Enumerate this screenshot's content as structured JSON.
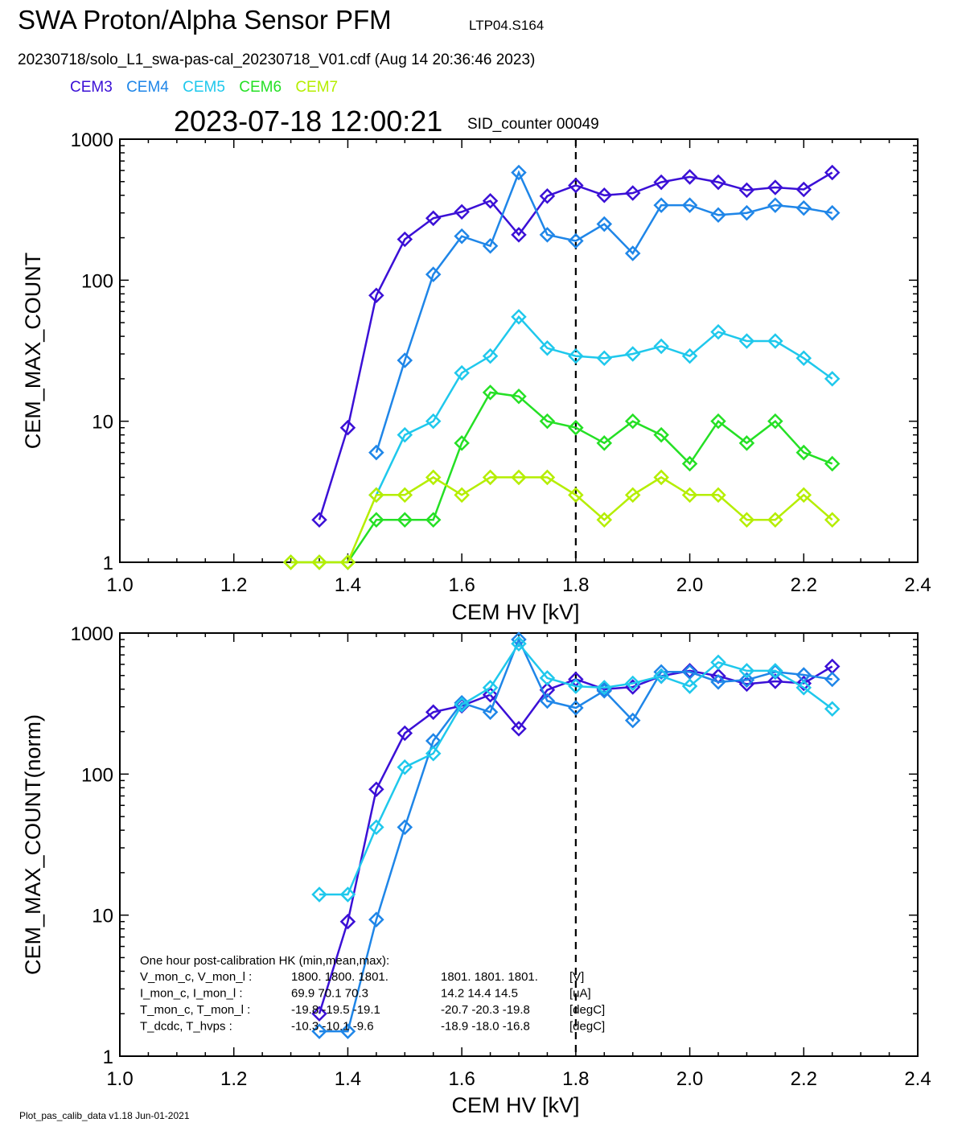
{
  "header": {
    "title": "SWA Proton/Alpha Sensor PFM",
    "title_tag": "LTP04.S164",
    "file_line": "20230718/solo_L1_swa-pas-cal_20230718_V01.cdf  (Aug 14 20:36:46 2023)",
    "legend": [
      {
        "label": "CEM3",
        "color": "#3b10d6"
      },
      {
        "label": "CEM4",
        "color": "#1f86e8"
      },
      {
        "label": "CEM5",
        "color": "#1fc8ec"
      },
      {
        "label": "CEM6",
        "color": "#25e025"
      },
      {
        "label": "CEM7",
        "color": "#b5ee00"
      }
    ],
    "timestamp": "2023-07-18 12:00:21",
    "sid_counter": "SID_counter 00049"
  },
  "footer": "Plot_pas_calib_data v1.18 Jun-01-2021",
  "chart_data": [
    {
      "type": "line",
      "xlabel": "CEM HV [kV]",
      "ylabel": "CEM_MAX_COUNT",
      "xlim": [
        1.0,
        2.4
      ],
      "ylim": [
        1,
        1000
      ],
      "yscale": "log",
      "x_ticks": [
        "1.0",
        "1.2",
        "1.4",
        "1.6",
        "1.8",
        "2.0",
        "2.2",
        "2.4"
      ],
      "y_ticks": [
        "1",
        "10",
        "100",
        "1000"
      ],
      "marker": "diamond",
      "vline": 1.8,
      "series": [
        {
          "name": "CEM3",
          "color": "#3b10d6",
          "x": [
            1.35,
            1.4,
            1.45,
            1.5,
            1.55,
            1.6,
            1.65,
            1.7,
            1.75,
            1.8,
            1.85,
            1.9,
            1.95,
            2.0,
            2.05,
            2.1,
            2.15,
            2.2,
            2.25
          ],
          "y": [
            2,
            9,
            78,
            195,
            275,
            305,
            365,
            210,
            395,
            470,
            400,
            415,
            495,
            540,
            495,
            435,
            455,
            440,
            580
          ]
        },
        {
          "name": "CEM4",
          "color": "#1f86e8",
          "x": [
            1.45,
            1.5,
            1.55,
            1.6,
            1.65,
            1.7,
            1.75,
            1.8,
            1.85,
            1.9,
            1.95,
            2.0,
            2.05,
            2.1,
            2.15,
            2.2,
            2.25
          ],
          "y": [
            6,
            27,
            110,
            205,
            175,
            580,
            210,
            190,
            250,
            155,
            340,
            340,
            290,
            300,
            340,
            325,
            300
          ]
        },
        {
          "name": "CEM5",
          "color": "#1fc8ec",
          "x": [
            1.45,
            1.5,
            1.55,
            1.6,
            1.65,
            1.7,
            1.75,
            1.8,
            1.85,
            1.9,
            1.95,
            2.0,
            2.05,
            2.1,
            2.15,
            2.2,
            2.25
          ],
          "y": [
            3,
            8,
            10,
            22,
            29,
            55,
            33,
            29,
            28,
            30,
            34,
            29,
            43,
            37,
            37,
            28,
            20
          ]
        },
        {
          "name": "CEM6",
          "color": "#25e025",
          "x": [
            1.3,
            1.35,
            1.4,
            1.45,
            1.5,
            1.55,
            1.6,
            1.65,
            1.7,
            1.75,
            1.8,
            1.85,
            1.9,
            1.95,
            2.0,
            2.05,
            2.1,
            2.15,
            2.2,
            2.25
          ],
          "y": [
            1,
            1,
            1,
            2,
            2,
            2,
            7,
            16,
            15,
            10,
            9,
            7,
            10,
            8,
            5,
            10,
            7,
            10,
            6,
            5
          ]
        },
        {
          "name": "CEM7",
          "color": "#b5ee00",
          "x": [
            1.3,
            1.35,
            1.4,
            1.45,
            1.5,
            1.55,
            1.6,
            1.65,
            1.7,
            1.75,
            1.8,
            1.85,
            1.9,
            1.95,
            2.0,
            2.05,
            2.1,
            2.15,
            2.2,
            2.25
          ],
          "y": [
            1,
            1,
            1,
            3,
            3,
            4,
            3,
            4,
            4,
            4,
            3,
            2,
            3,
            4,
            3,
            3,
            2,
            2,
            3,
            2
          ]
        }
      ]
    },
    {
      "type": "line",
      "xlabel": "CEM HV [kV]",
      "ylabel": "CEM_MAX_COUNT(norm)",
      "xlim": [
        1.0,
        2.4
      ],
      "ylim": [
        1,
        1000
      ],
      "yscale": "log",
      "x_ticks": [
        "1.0",
        "1.2",
        "1.4",
        "1.6",
        "1.8",
        "2.0",
        "2.2",
        "2.4"
      ],
      "y_ticks": [
        "1",
        "10",
        "100",
        "1000"
      ],
      "marker": "diamond",
      "vline": 1.8,
      "series": [
        {
          "name": "CEM3",
          "color": "#3b10d6",
          "x": [
            1.35,
            1.4,
            1.45,
            1.5,
            1.55,
            1.6,
            1.65,
            1.7,
            1.75,
            1.8,
            1.85,
            1.9,
            1.95,
            2.0,
            2.05,
            2.1,
            2.15,
            2.2,
            2.25
          ],
          "y": [
            2,
            9,
            78,
            195,
            275,
            305,
            365,
            210,
            395,
            470,
            400,
            415,
            495,
            540,
            495,
            435,
            455,
            440,
            580
          ]
        },
        {
          "name": "CEM4",
          "color": "#1f86e8",
          "x": [
            1.35,
            1.4,
            1.45,
            1.5,
            1.55,
            1.6,
            1.65,
            1.7,
            1.75,
            1.8,
            1.85,
            1.9,
            1.95,
            2.0,
            2.05,
            2.1,
            2.15,
            2.2,
            2.25
          ],
          "y": [
            1.5,
            1.5,
            9.3,
            42,
            172,
            320,
            275,
            900,
            330,
            295,
            390,
            240,
            530,
            530,
            450,
            465,
            530,
            505,
            470
          ]
        },
        {
          "name": "CEM5",
          "color": "#1fc8ec",
          "x": [
            1.35,
            1.4,
            1.45,
            1.5,
            1.55,
            1.6,
            1.65,
            1.7,
            1.75,
            1.8,
            1.85,
            1.9,
            1.95,
            2.0,
            2.05,
            2.1,
            2.15,
            2.2,
            2.25
          ],
          "y": [
            14,
            14,
            42,
            112,
            140,
            310,
            410,
            840,
            480,
            420,
            410,
            440,
            495,
            420,
            620,
            540,
            540,
            410,
            290
          ]
        }
      ],
      "annotation": {
        "heading": "One hour post-calibration HK (min,mean,max):",
        "rows": [
          {
            "label": "V_mon_c, V_mon_l :",
            "a": "1800.  1800.  1801.",
            "b": "1801.  1801.  1801.",
            "unit": "[V]"
          },
          {
            "label": "I_mon_c,  I_mon_l :",
            "a": "69.9   70.1   70.3",
            "b": "14.2   14.4   14.5",
            "unit": "[uA]"
          },
          {
            "label": "T_mon_c, T_mon_l :",
            "a": "-19.8  -19.5  -19.1",
            "b": "-20.7  -20.3  -19.8",
            "unit": "[degC]"
          },
          {
            "label": "T_dcdc,    T_hvps :",
            "a": "-10.3  -10.1   -9.6",
            "b": "-18.9  -18.0  -16.8",
            "unit": "[degC]"
          }
        ]
      }
    }
  ]
}
